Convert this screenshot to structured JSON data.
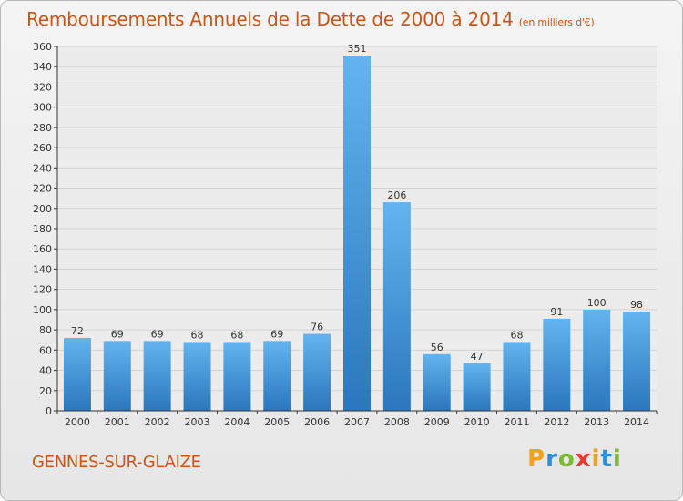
{
  "page": {
    "title": "Remboursements Annuels de la Dette de 2000 à 2014",
    "subtitle": "(en milliers d'€)",
    "commune": "GENNES-SUR-GLAIZE",
    "brand": {
      "letters": [
        "P",
        "r",
        "o",
        "x",
        "i",
        "t",
        "i"
      ],
      "colors": [
        "#f3a11a",
        "#2d8fd6",
        "#7dbb2e",
        "#e63a2e",
        "#f3a11a",
        "#2d8fd6",
        "#7dbb2e"
      ]
    }
  },
  "colors": {
    "bar_light": "#63b4ee",
    "bar_dark": "#2a77bd",
    "accent": "#c8561c",
    "grid": "#d4d4d4",
    "axis": "#333333"
  },
  "chart_data": {
    "type": "bar",
    "title": "Remboursements Annuels de la Dette de 2000 à 2014",
    "categories": [
      "2000",
      "2001",
      "2002",
      "2003",
      "2004",
      "2005",
      "2006",
      "2007",
      "2008",
      "2009",
      "2010",
      "2011",
      "2012",
      "2013",
      "2014"
    ],
    "values": [
      72,
      69,
      69,
      68,
      68,
      69,
      76,
      351,
      206,
      56,
      47,
      68,
      91,
      100,
      98
    ],
    "ylim": [
      0,
      360
    ],
    "yticks": [
      0,
      20,
      40,
      60,
      80,
      100,
      120,
      140,
      160,
      180,
      200,
      220,
      240,
      260,
      280,
      300,
      320,
      340,
      360
    ],
    "grid": true,
    "legend": "none",
    "data_labels": true
  }
}
